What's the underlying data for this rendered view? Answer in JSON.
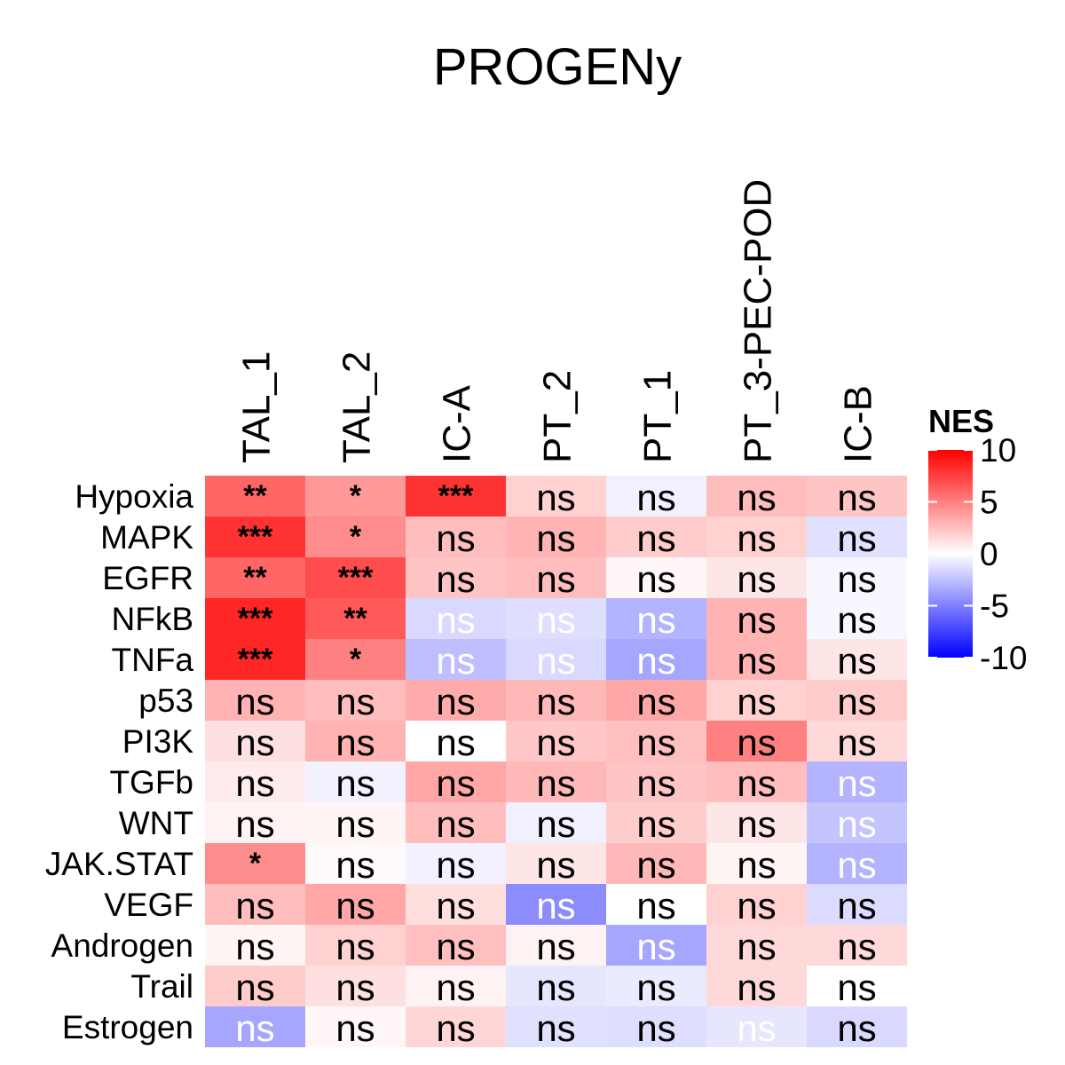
{
  "chart_data": {
    "type": "heatmap",
    "title": "PROGENy",
    "columns": [
      "TAL_1",
      "TAL_2",
      "IC-A",
      "PT_2",
      "PT_1",
      "PT_3-PEC-POD",
      "IC-B"
    ],
    "rows": [
      "Hypoxia",
      "MAPK",
      "EGFR",
      "NFkB",
      "TNFa",
      "p53",
      "PI3K",
      "TGFb",
      "WNT",
      "JAK.STAT",
      "VEGF",
      "Androgen",
      "Trail",
      "Estrogen"
    ],
    "values": [
      [
        6.0,
        4.0,
        8.0,
        1.8,
        -0.6,
        2.6,
        2.3
      ],
      [
        8.0,
        4.5,
        2.6,
        3.0,
        2.0,
        1.8,
        -1.2
      ],
      [
        6.0,
        7.0,
        2.3,
        2.6,
        0.3,
        1.0,
        -0.3
      ],
      [
        8.5,
        6.5,
        -1.5,
        -1.3,
        -3.0,
        3.0,
        -0.3
      ],
      [
        8.5,
        5.0,
        -2.5,
        -1.5,
        -3.5,
        3.0,
        1.0
      ],
      [
        3.0,
        2.6,
        3.3,
        2.8,
        3.5,
        1.8,
        2.0
      ],
      [
        1.2,
        3.0,
        0.0,
        2.2,
        2.5,
        5.0,
        1.5
      ],
      [
        0.8,
        -0.5,
        3.5,
        2.8,
        2.3,
        2.6,
        -3.0
      ],
      [
        0.5,
        0.4,
        2.6,
        -0.6,
        2.0,
        1.0,
        -2.3
      ],
      [
        4.5,
        0.2,
        -0.5,
        1.0,
        2.8,
        0.4,
        -3.0
      ],
      [
        2.6,
        3.5,
        1.3,
        -4.5,
        0.0,
        1.8,
        -1.4
      ],
      [
        0.4,
        1.8,
        2.5,
        0.5,
        -3.5,
        1.5,
        1.5
      ],
      [
        2.0,
        1.2,
        0.5,
        -1.0,
        -0.8,
        1.5,
        0.0
      ],
      [
        -3.5,
        0.3,
        1.6,
        -1.2,
        -1.3,
        -1.0,
        -1.5
      ]
    ],
    "labels": [
      [
        "**",
        "*",
        "***",
        "ns",
        "ns",
        "ns",
        "ns"
      ],
      [
        "***",
        "*",
        "ns",
        "ns",
        "ns",
        "ns",
        "ns"
      ],
      [
        "**",
        "***",
        "ns",
        "ns",
        "ns",
        "ns",
        "ns"
      ],
      [
        "***",
        "**",
        "ns",
        "ns",
        "ns",
        "ns",
        "ns"
      ],
      [
        "***",
        "*",
        "ns",
        "ns",
        "ns",
        "ns",
        "ns"
      ],
      [
        "ns",
        "ns",
        "ns",
        "ns",
        "ns",
        "ns",
        "ns"
      ],
      [
        "ns",
        "ns",
        "ns",
        "ns",
        "ns",
        "ns",
        "ns"
      ],
      [
        "ns",
        "ns",
        "ns",
        "ns",
        "ns",
        "ns",
        "ns"
      ],
      [
        "ns",
        "ns",
        "ns",
        "ns",
        "ns",
        "ns",
        "ns"
      ],
      [
        "*",
        "ns",
        "ns",
        "ns",
        "ns",
        "ns",
        "ns"
      ],
      [
        "ns",
        "ns",
        "ns",
        "ns",
        "ns",
        "ns",
        "ns"
      ],
      [
        "ns",
        "ns",
        "ns",
        "ns",
        "ns",
        "ns",
        "ns"
      ],
      [
        "ns",
        "ns",
        "ns",
        "ns",
        "ns",
        "ns",
        "ns"
      ],
      [
        "ns",
        "ns",
        "ns",
        "ns",
        "ns",
        "ns",
        "ns"
      ]
    ],
    "white_labels": [
      [
        0,
        0,
        0,
        0,
        0,
        0,
        0
      ],
      [
        0,
        0,
        0,
        0,
        0,
        0,
        0
      ],
      [
        0,
        0,
        0,
        0,
        0,
        0,
        0
      ],
      [
        0,
        0,
        1,
        1,
        1,
        0,
        0
      ],
      [
        0,
        0,
        1,
        1,
        1,
        0,
        0
      ],
      [
        0,
        0,
        0,
        0,
        0,
        0,
        0
      ],
      [
        0,
        0,
        0,
        0,
        0,
        0,
        0
      ],
      [
        0,
        0,
        0,
        0,
        0,
        0,
        1
      ],
      [
        0,
        0,
        0,
        0,
        0,
        0,
        1
      ],
      [
        0,
        0,
        0,
        0,
        0,
        0,
        1
      ],
      [
        0,
        0,
        0,
        1,
        0,
        0,
        0
      ],
      [
        0,
        0,
        0,
        0,
        1,
        0,
        0
      ],
      [
        0,
        0,
        0,
        0,
        0,
        0,
        0
      ],
      [
        1,
        0,
        0,
        0,
        0,
        1,
        0
      ]
    ],
    "legend": {
      "title": "NES",
      "range": [
        -10,
        10
      ],
      "ticks": [
        10,
        5,
        0,
        -5,
        -10
      ],
      "tick_labels": [
        "10",
        "5",
        "0",
        "-5",
        "-10"
      ],
      "placement": "right"
    },
    "colors": {
      "high": "#ff0000",
      "mid": "#ffffff",
      "low": "#0000ff"
    }
  }
}
